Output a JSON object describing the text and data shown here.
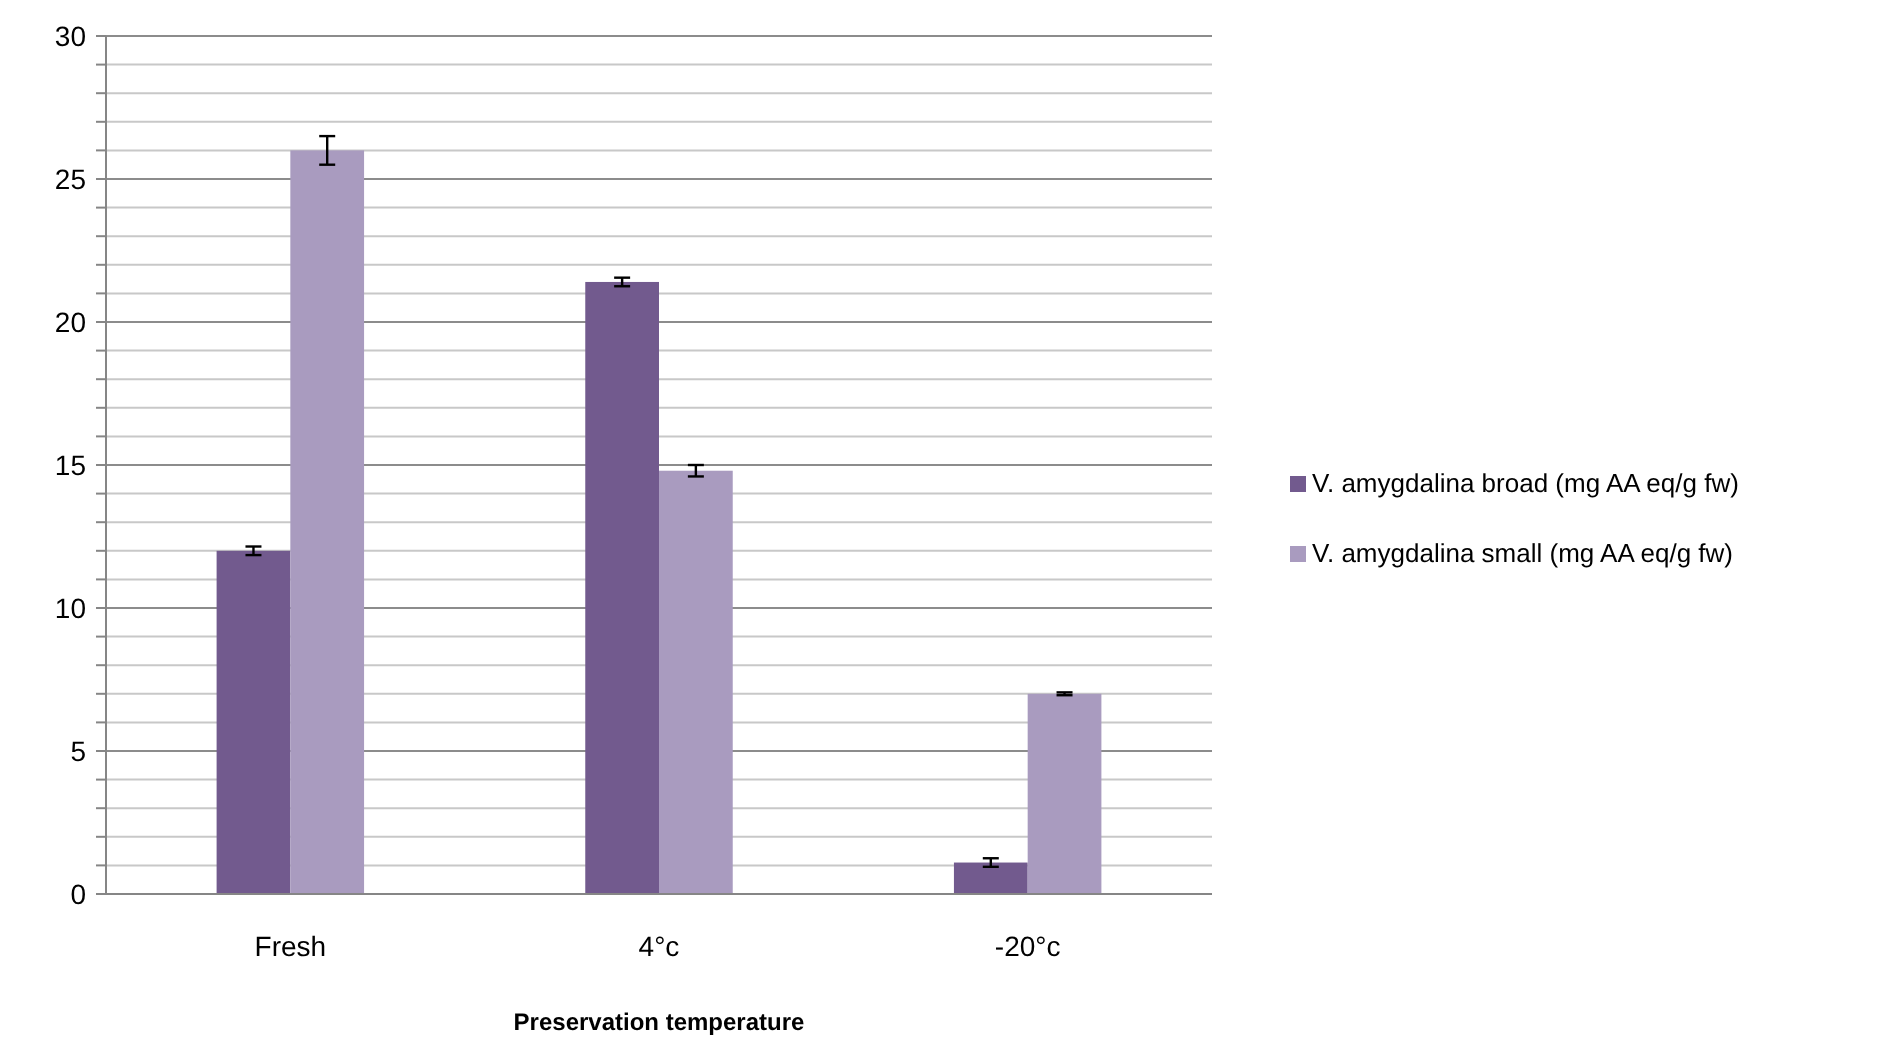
{
  "chart_data": {
    "type": "bar",
    "xlabel": "Preservation temperature",
    "categories": [
      "Fresh",
      "4°c",
      "-20°c"
    ],
    "series": [
      {
        "name": "V. amygdalina broad (mg AA eq/g fw)",
        "color": "#725a8e",
        "values": [
          12.0,
          21.4,
          1.1
        ],
        "errors": [
          0.15,
          0.15,
          0.15
        ]
      },
      {
        "name": "V. amygdalina small (mg AA eq/g fw)",
        "color": "#a99bbf",
        "values": [
          26.0,
          14.8,
          7.0
        ],
        "errors": [
          0.5,
          0.2,
          0.05
        ]
      }
    ],
    "ylim": [
      0,
      30
    ],
    "yticks": [
      0,
      {
        "value": 1,
        "label": null
      },
      {
        "value": 2,
        "label": null
      },
      {
        "value": 3,
        "label": null
      },
      {
        "value": 4,
        "label": null
      },
      5,
      {
        "value": 6,
        "label": null
      },
      {
        "value": 7,
        "label": null
      },
      {
        "value": 8,
        "label": null
      },
      {
        "value": 9,
        "label": null
      },
      10,
      {
        "value": 11,
        "label": null
      },
      {
        "value": 12,
        "label": null
      },
      {
        "value": 13,
        "label": null
      },
      {
        "value": 14,
        "label": null
      },
      15,
      {
        "value": 16,
        "label": null
      },
      {
        "value": 17,
        "label": null
      },
      {
        "value": 18,
        "label": null
      },
      {
        "value": 19,
        "label": null
      },
      20,
      {
        "value": 21,
        "label": null
      },
      {
        "value": 22,
        "label": null
      },
      {
        "value": 23,
        "label": null
      },
      {
        "value": 24,
        "label": null
      },
      25,
      {
        "value": 26,
        "label": null
      },
      {
        "value": 27,
        "label": null
      },
      {
        "value": 28,
        "label": null
      },
      {
        "value": 29,
        "label": null
      },
      30
    ],
    "grid": true,
    "legend": "right"
  }
}
